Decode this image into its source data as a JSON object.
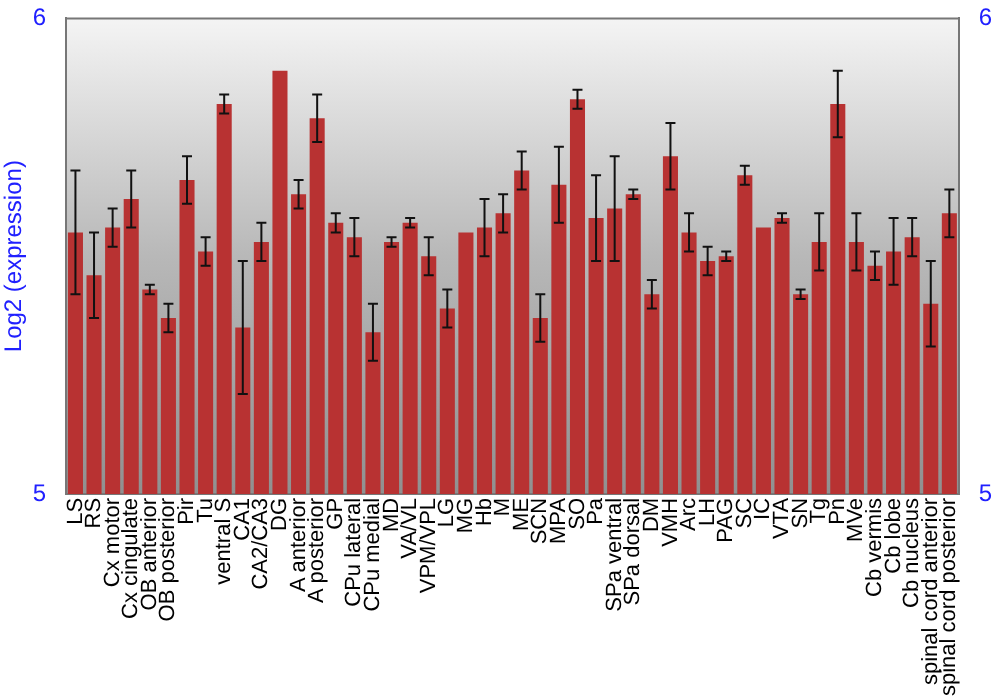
{
  "chart_data": {
    "type": "bar",
    "ylabel": "Log2 (expression)",
    "categories": [
      "LS",
      "RS",
      "Cx motor",
      "Cx cingulate",
      "OB anterior",
      "OB posterior",
      "Pir",
      "Tu",
      "ventral S",
      "CA1",
      "CA2/CA3",
      "DG",
      "A anterior",
      "A posterior",
      "GP",
      "CPu lateral",
      "CPu medial",
      "MD",
      "VA/VL",
      "VPM/VPL",
      "LG",
      "MG",
      "Hb",
      "M",
      "ME",
      "SCN",
      "MPA",
      "SO",
      "Pa",
      "SPa ventral",
      "SPa dorsal",
      "DM",
      "VMH",
      "Arc",
      "LH",
      "PAG",
      "SC",
      "IC",
      "VTA",
      "SN",
      "Tg",
      "Pn",
      "MVe",
      "Cb vermis",
      "Cb lobe",
      "Cb nucleus",
      "spinal cord anterior",
      "spinal cord posterior"
    ],
    "values": [
      5.55,
      5.46,
      5.56,
      5.62,
      5.43,
      5.37,
      5.66,
      5.51,
      5.82,
      5.35,
      5.53,
      5.89,
      5.63,
      5.79,
      5.57,
      5.54,
      5.34,
      5.53,
      5.57,
      5.5,
      5.39,
      5.55,
      5.56,
      5.59,
      5.68,
      5.37,
      5.65,
      5.83,
      5.58,
      5.6,
      5.63,
      5.42,
      5.71,
      5.55,
      5.49,
      5.5,
      5.67,
      5.56,
      5.58,
      5.42,
      5.53,
      5.82,
      5.53,
      5.48,
      5.51,
      5.54,
      5.4,
      5.59
    ],
    "errors": [
      0.13,
      0.09,
      0.04,
      0.06,
      0.01,
      0.03,
      0.05,
      0.03,
      0.02,
      0.14,
      0.04,
      null,
      0.03,
      0.05,
      0.02,
      0.04,
      0.06,
      0.01,
      0.01,
      0.04,
      0.04,
      null,
      0.06,
      0.04,
      0.04,
      0.05,
      0.08,
      0.02,
      0.09,
      0.11,
      0.01,
      0.03,
      0.07,
      0.04,
      0.03,
      0.01,
      0.02,
      null,
      0.01,
      0.01,
      0.06,
      0.07,
      0.06,
      0.03,
      0.07,
      0.04,
      0.09,
      0.05
    ],
    "color": "#b83232",
    "ylim": [
      5,
      6
    ],
    "yticks": [
      5,
      6
    ],
    "y2lim": [
      5,
      6
    ],
    "y2ticks": [
      5,
      6
    ],
    "grid": false,
    "legend": false
  }
}
